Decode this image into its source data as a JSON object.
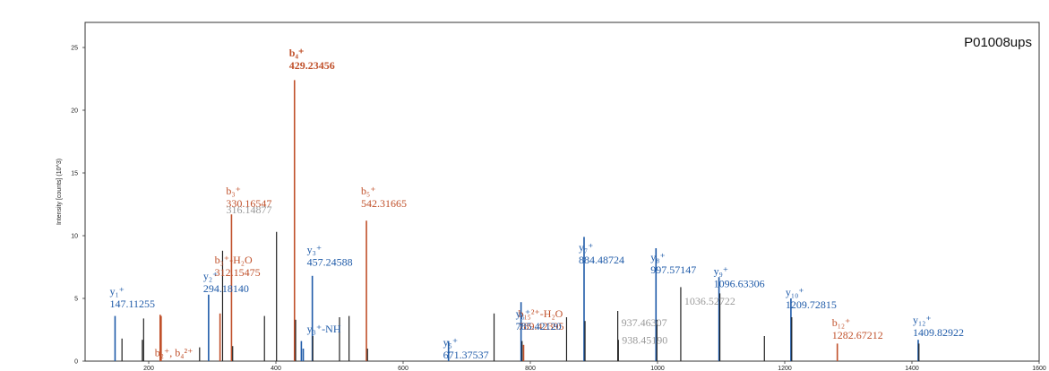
{
  "chart_data": {
    "type": "bar",
    "title": "P01008ups",
    "xlabel": "",
    "ylabel": "Intensity [counts] (10^3)",
    "xlim": [
      100,
      1600
    ],
    "ylim": [
      0,
      27
    ],
    "xticks": [
      200,
      400,
      600,
      800,
      1000,
      1200,
      1400,
      1600
    ],
    "yticks": [
      0,
      5,
      10,
      15,
      20,
      25
    ],
    "grid": false,
    "colors": {
      "b": "#c0502a",
      "y": "#1e5aa8",
      "other": "#222222",
      "gray": "#9a9a9a"
    },
    "peaks": [
      {
        "mz": 147.11,
        "intensity": 3.6,
        "ion": "y"
      },
      {
        "mz": 158.0,
        "intensity": 1.8,
        "ion": "other"
      },
      {
        "mz": 190.0,
        "intensity": 1.7,
        "ion": "other"
      },
      {
        "mz": 192.0,
        "intensity": 3.4,
        "ion": "other"
      },
      {
        "mz": 218.0,
        "intensity": 3.7,
        "ion": "b"
      },
      {
        "mz": 219.5,
        "intensity": 3.6,
        "ion": "b"
      },
      {
        "mz": 280.0,
        "intensity": 1.1,
        "ion": "other"
      },
      {
        "mz": 294.18,
        "intensity": 5.3,
        "ion": "y"
      },
      {
        "mz": 312.15,
        "intensity": 3.8,
        "ion": "b"
      },
      {
        "mz": 316.15,
        "intensity": 8.8,
        "ion": "other"
      },
      {
        "mz": 330.17,
        "intensity": 11.7,
        "ion": "b"
      },
      {
        "mz": 332.0,
        "intensity": 1.2,
        "ion": "other"
      },
      {
        "mz": 382.0,
        "intensity": 3.6,
        "ion": "other"
      },
      {
        "mz": 401.0,
        "intensity": 10.3,
        "ion": "other"
      },
      {
        "mz": 429.23,
        "intensity": 22.4,
        "ion": "b"
      },
      {
        "mz": 431.0,
        "intensity": 3.3,
        "ion": "other"
      },
      {
        "mz": 440.0,
        "intensity": 1.6,
        "ion": "y"
      },
      {
        "mz": 443.0,
        "intensity": 1.0,
        "ion": "y"
      },
      {
        "mz": 457.25,
        "intensity": 6.8,
        "ion": "y"
      },
      {
        "mz": 458.0,
        "intensity": 2.0,
        "ion": "other"
      },
      {
        "mz": 500.0,
        "intensity": 3.5,
        "ion": "other"
      },
      {
        "mz": 515.0,
        "intensity": 3.6,
        "ion": "other"
      },
      {
        "mz": 542.32,
        "intensity": 11.2,
        "ion": "b"
      },
      {
        "mz": 544.0,
        "intensity": 1.0,
        "ion": "other"
      },
      {
        "mz": 671.38,
        "intensity": 1.6,
        "ion": "y"
      },
      {
        "mz": 743.0,
        "intensity": 3.8,
        "ion": "other"
      },
      {
        "mz": 785.42,
        "intensity": 4.7,
        "ion": "y"
      },
      {
        "mz": 787.0,
        "intensity": 1.6,
        "ion": "other"
      },
      {
        "mz": 789.42,
        "intensity": 1.3,
        "ion": "b"
      },
      {
        "mz": 857.0,
        "intensity": 3.5,
        "ion": "other"
      },
      {
        "mz": 884.49,
        "intensity": 9.9,
        "ion": "y"
      },
      {
        "mz": 886.0,
        "intensity": 3.2,
        "ion": "other"
      },
      {
        "mz": 937.46,
        "intensity": 4.0,
        "ion": "other"
      },
      {
        "mz": 938.45,
        "intensity": 1.7,
        "ion": "other"
      },
      {
        "mz": 997.57,
        "intensity": 9.0,
        "ion": "y"
      },
      {
        "mz": 999.0,
        "intensity": 3.3,
        "ion": "other"
      },
      {
        "mz": 1036.53,
        "intensity": 5.9,
        "ion": "other"
      },
      {
        "mz": 1096.63,
        "intensity": 6.7,
        "ion": "y"
      },
      {
        "mz": 1098.0,
        "intensity": 5.4,
        "ion": "other"
      },
      {
        "mz": 1168.0,
        "intensity": 2.0,
        "ion": "other"
      },
      {
        "mz": 1209.73,
        "intensity": 5.0,
        "ion": "y"
      },
      {
        "mz": 1211.0,
        "intensity": 3.5,
        "ion": "other"
      },
      {
        "mz": 1282.67,
        "intensity": 1.4,
        "ion": "b"
      },
      {
        "mz": 1409.83,
        "intensity": 1.7,
        "ion": "y"
      },
      {
        "mz": 1411.0,
        "intensity": 1.4,
        "ion": "other"
      }
    ],
    "annotations": [
      {
        "ion": "y",
        "mz": 147.11,
        "y": 4.3,
        "label": "y₁⁺",
        "value": "147.11255"
      },
      {
        "ion": "y",
        "mz": 294.18,
        "y": 5.5,
        "label": "y₂⁺",
        "value": "294.18140"
      },
      {
        "ion": "b",
        "mz": 218.0,
        "y": 0.4,
        "label": "b₂⁺, b₄²⁺",
        "value": ""
      },
      {
        "ion": "b",
        "mz": 312.15,
        "y": 6.8,
        "label": "b₃⁺-H₂O",
        "value": "312.15475"
      },
      {
        "ion": "b",
        "mz": 330.17,
        "y": 12.3,
        "label": "b₃⁺",
        "value": "330.16547"
      },
      {
        "ion": "gray",
        "mz": 316.15,
        "y": 11.8,
        "label": "",
        "value": "316.14877"
      },
      {
        "ion": "b",
        "mz": 429.23,
        "y": 23.3,
        "label": "b₄⁺",
        "value": "429.23456"
      },
      {
        "ion": "y",
        "mz": 457.25,
        "y": 7.6,
        "label": "y₃⁺",
        "value": "457.24588"
      },
      {
        "ion": "y",
        "mz": 457.25,
        "y": 2.3,
        "label": "y₃⁺-NH",
        "value": ""
      },
      {
        "ion": "b",
        "mz": 542.32,
        "y": 12.3,
        "label": "b₅⁺",
        "value": "542.31665"
      },
      {
        "ion": "y",
        "mz": 671.38,
        "y": 0.2,
        "label": "y₅⁺",
        "value": "671.37537"
      },
      {
        "ion": "b",
        "mz": 789.42,
        "y": 2.5,
        "label": "b₁₅²⁺-H₂O",
        "value": "789.42395"
      },
      {
        "ion": "y",
        "mz": 785.42,
        "y": 2.5,
        "label": "y₆⁺",
        "value": "785.42120"
      },
      {
        "ion": "gray",
        "mz": 938.45,
        "y": 1.4,
        "label": "",
        "value": "938.45190"
      },
      {
        "ion": "y",
        "mz": 884.49,
        "y": 7.8,
        "label": "y₇⁺",
        "value": "884.48724"
      },
      {
        "ion": "gray",
        "mz": 1036.53,
        "y": 4.5,
        "label": "",
        "value": "1036.52722"
      },
      {
        "ion": "gray",
        "mz": 937.46,
        "y": 2.8,
        "label": "",
        "value": "937.46307"
      },
      {
        "ion": "y",
        "mz": 997.57,
        "y": 7.0,
        "label": "y₈⁺",
        "value": "997.57147"
      },
      {
        "ion": "y",
        "mz": 1096.63,
        "y": 5.9,
        "label": "y₉⁺",
        "value": "1096.63306"
      },
      {
        "ion": "y",
        "mz": 1209.73,
        "y": 4.2,
        "label": "y₁₀⁺",
        "value": "1209.72815"
      },
      {
        "ion": "b",
        "mz": 1282.67,
        "y": 1.8,
        "label": "b₁₂⁺",
        "value": "1282.67212"
      },
      {
        "ion": "y",
        "mz": 1409.83,
        "y": 2.0,
        "label": "y₁₂⁺",
        "value": "1409.82922"
      }
    ]
  }
}
